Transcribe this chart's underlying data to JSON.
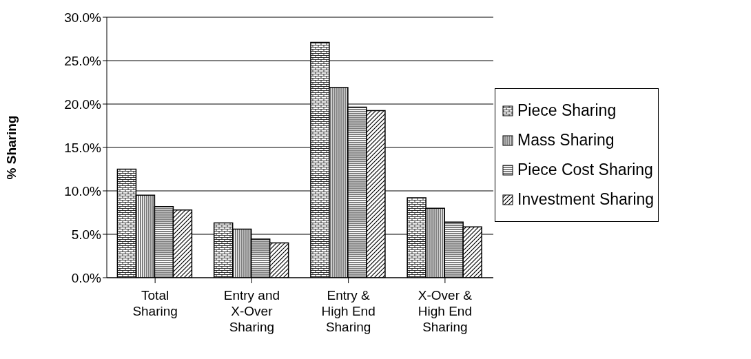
{
  "chart_data": {
    "type": "bar",
    "ylabel": "% Sharing",
    "categories": [
      "Total Sharing",
      "Entry and X-Over Sharing",
      "Entry & High End Sharing",
      "X-Over & High End Sharing"
    ],
    "series": [
      {
        "name": "Piece Sharing",
        "color": "#000000",
        "values": [
          12.5,
          6.3,
          27.1,
          9.2
        ]
      },
      {
        "name": "Mass Sharing",
        "color": "#000000",
        "values": [
          9.5,
          5.6,
          21.9,
          8.0
        ]
      },
      {
        "name": "Piece Cost Sharing",
        "color": "#000000",
        "values": [
          8.2,
          4.45,
          19.65,
          6.4
        ]
      },
      {
        "name": "Investment Sharing",
        "color": "#000000",
        "values": [
          7.8,
          4.0,
          19.25,
          5.85
        ]
      }
    ],
    "ylim": [
      0,
      30
    ],
    "yticks": [
      {
        "value": 0,
        "label": "0.0%"
      },
      {
        "value": 5,
        "label": "5.0%"
      },
      {
        "value": 10,
        "label": "10.0%"
      },
      {
        "value": 15,
        "label": "15.0%"
      },
      {
        "value": 20,
        "label": "20.0%"
      },
      {
        "value": 25,
        "label": "25.0%"
      },
      {
        "value": 30,
        "label": "30.0%"
      }
    ],
    "grid": "y",
    "legend": "right"
  }
}
